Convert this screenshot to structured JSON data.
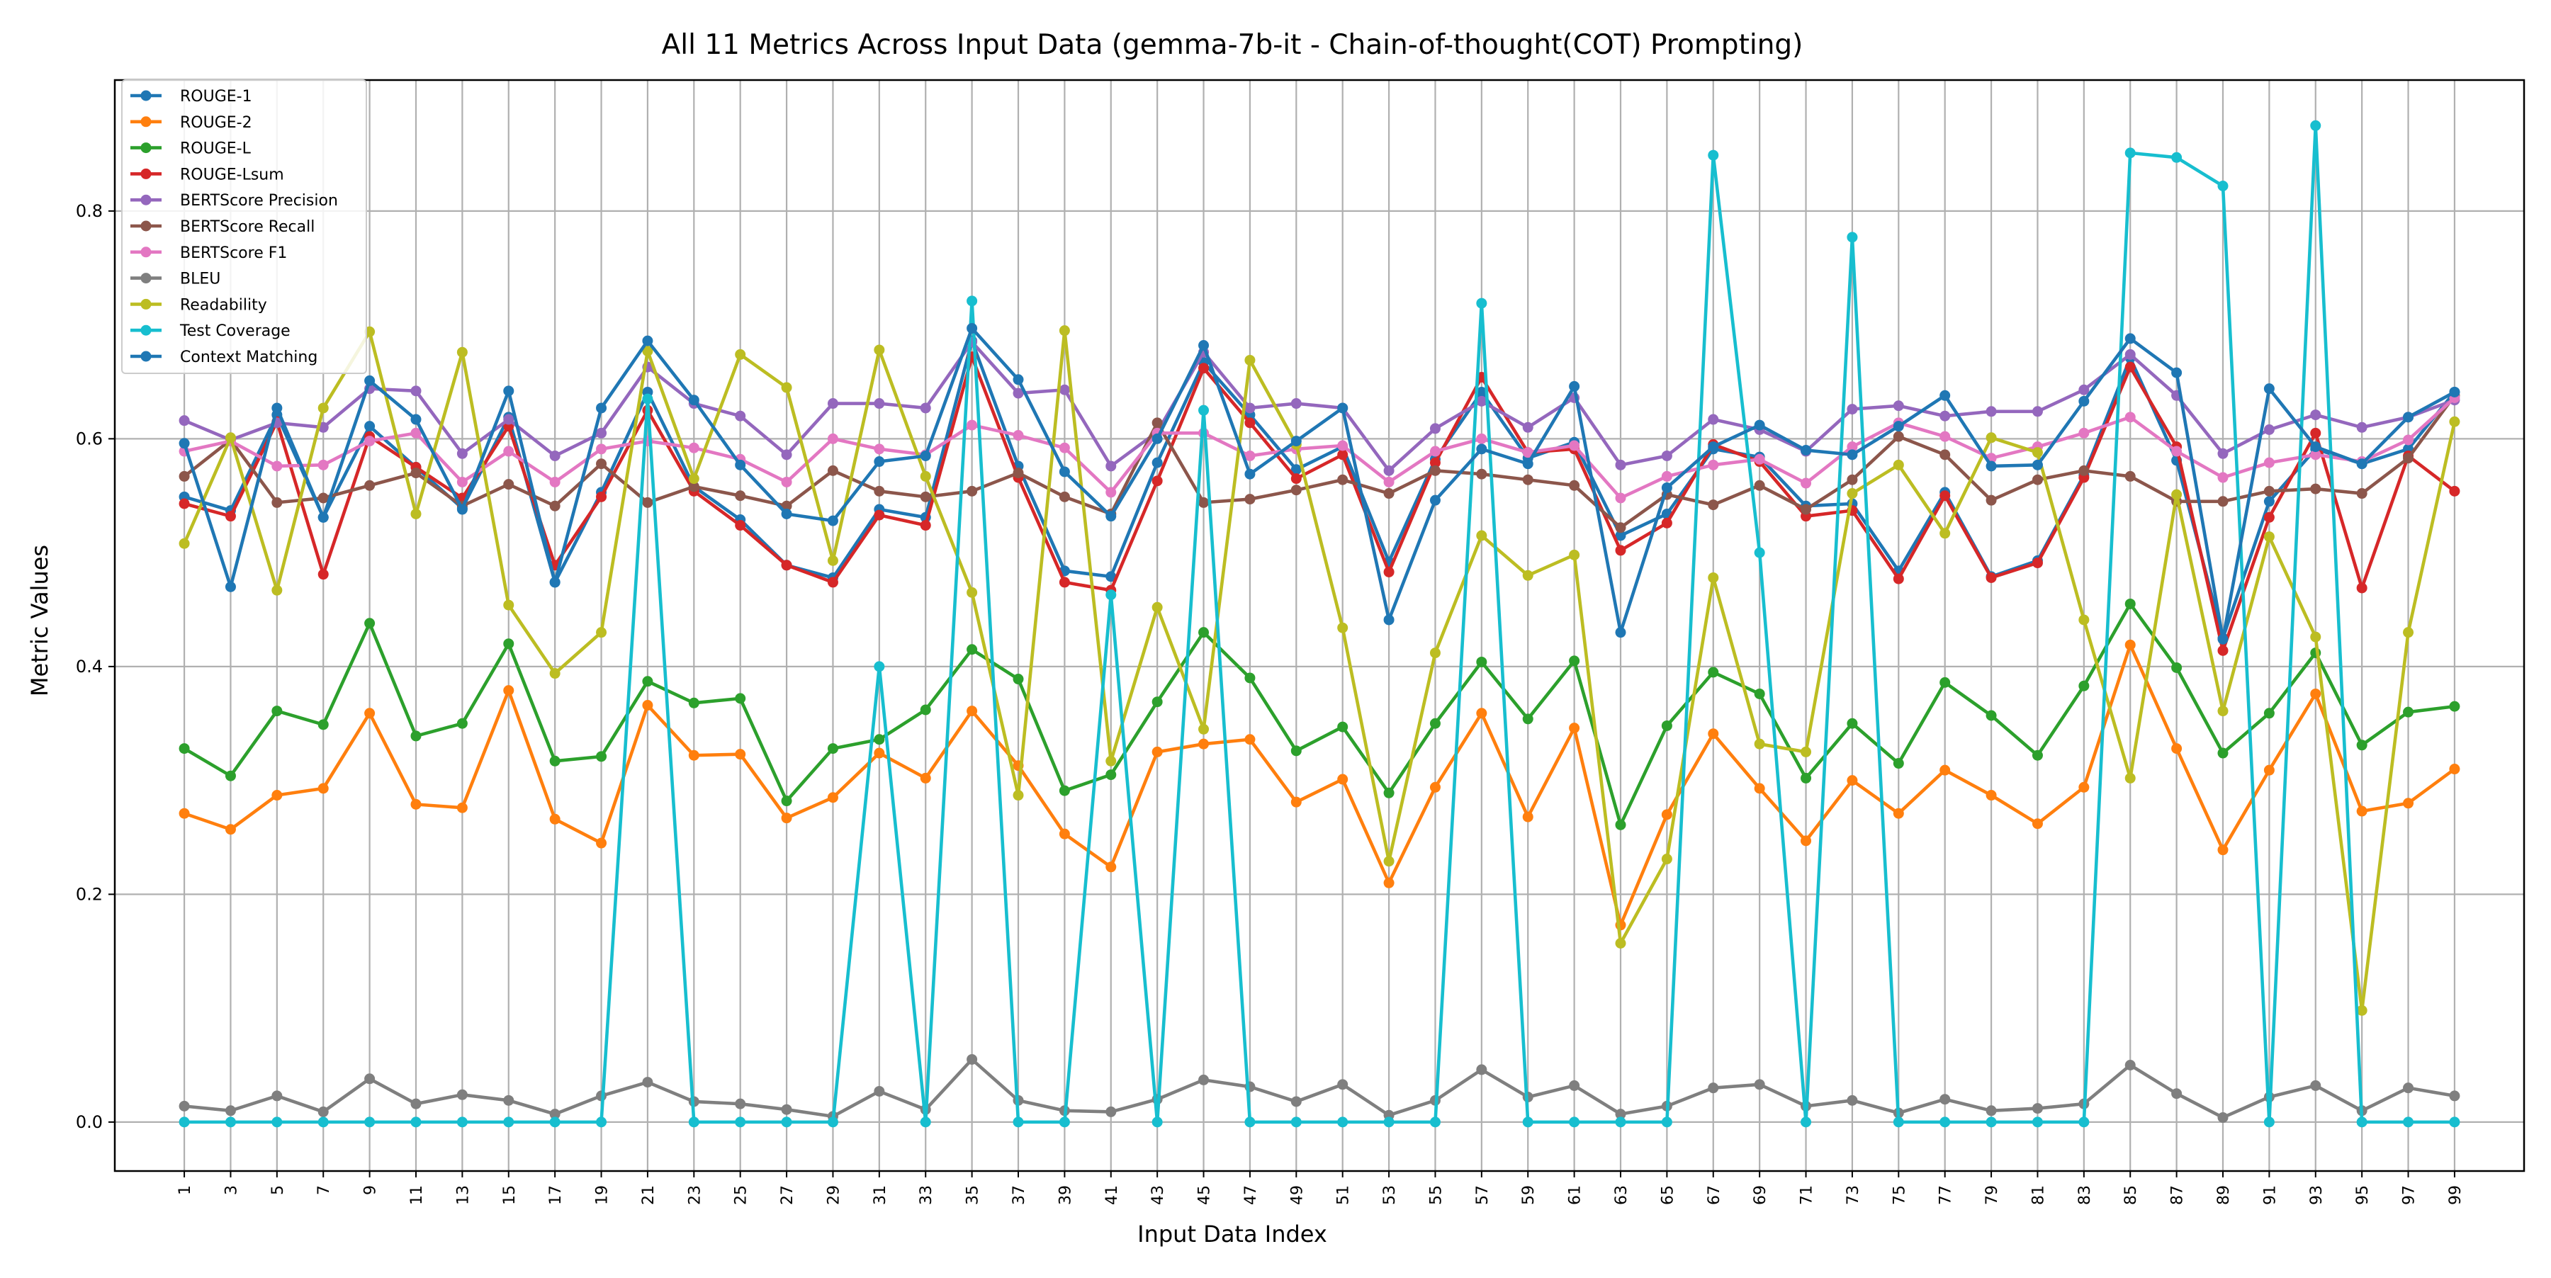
{
  "chart_data": {
    "type": "line",
    "title": "All 11 Metrics Across Input Data (gemma-7b-it - Chain-of-thought(COT) Prompting)",
    "xlabel": "Input Data Index",
    "ylabel": "Metric Values",
    "x": [
      1,
      3,
      5,
      7,
      9,
      11,
      13,
      15,
      17,
      19,
      21,
      23,
      25,
      27,
      29,
      31,
      33,
      35,
      37,
      39,
      41,
      43,
      45,
      47,
      49,
      51,
      53,
      55,
      57,
      59,
      61,
      63,
      65,
      67,
      69,
      71,
      73,
      75,
      77,
      79,
      81,
      83,
      85,
      87,
      89,
      91,
      93,
      95,
      97,
      99
    ],
    "xticks": [
      "1",
      "3",
      "5",
      "7",
      "9",
      "11",
      "13",
      "15",
      "17",
      "19",
      "21",
      "23",
      "25",
      "27",
      "29",
      "31",
      "33",
      "35",
      "37",
      "39",
      "41",
      "43",
      "45",
      "47",
      "49",
      "51",
      "53",
      "55",
      "57",
      "59",
      "61",
      "63",
      "65",
      "67",
      "69",
      "71",
      "73",
      "75",
      "77",
      "79",
      "81",
      "83",
      "85",
      "87",
      "89",
      "91",
      "93",
      "95",
      "97",
      "99"
    ],
    "yticks": [
      "0.0",
      "0.2",
      "0.4",
      "0.6",
      "0.8"
    ],
    "ytick_values": [
      0.0,
      0.2,
      0.4,
      0.6,
      0.8
    ],
    "ylim": [
      -0.043,
      0.915
    ],
    "xlim": [
      -2.0,
      102.0
    ],
    "grid": true,
    "legend_position": "upper-left",
    "series": [
      {
        "name": "ROUGE-1",
        "color": "#1f77b4",
        "values": [
          0.549,
          0.537,
          0.621,
          0.531,
          0.611,
          0.575,
          0.539,
          0.619,
          0.474,
          0.553,
          0.641,
          0.558,
          0.529,
          0.489,
          0.478,
          0.538,
          0.531,
          0.686,
          0.576,
          0.484,
          0.479,
          0.579,
          0.667,
          0.621,
          0.573,
          0.593,
          0.492,
          0.582,
          0.641,
          0.583,
          0.597,
          0.515,
          0.534,
          0.591,
          0.584,
          0.541,
          0.543,
          0.484,
          0.553,
          0.479,
          0.493,
          0.568,
          0.671,
          0.581,
          0.425,
          0.545,
          0.591,
          0.578,
          0.591,
          0.641
        ]
      },
      {
        "name": "ROUGE-2",
        "color": "#ff7f0e",
        "values": [
          0.271,
          0.257,
          0.287,
          0.293,
          0.359,
          0.279,
          0.276,
          0.379,
          0.266,
          0.245,
          0.366,
          0.322,
          0.323,
          0.267,
          0.285,
          0.324,
          0.302,
          0.361,
          0.313,
          0.253,
          0.224,
          0.325,
          0.332,
          0.336,
          0.281,
          0.301,
          0.21,
          0.294,
          0.359,
          0.268,
          0.346,
          0.173,
          0.27,
          0.341,
          0.293,
          0.247,
          0.3,
          0.271,
          0.309,
          0.287,
          0.262,
          0.294,
          0.419,
          0.328,
          0.239,
          0.309,
          0.376,
          0.273,
          0.28,
          0.31
        ]
      },
      {
        "name": "ROUGE-L",
        "color": "#2ca02c",
        "values": [
          0.328,
          0.304,
          0.361,
          0.349,
          0.438,
          0.339,
          0.35,
          0.42,
          0.317,
          0.321,
          0.387,
          0.368,
          0.372,
          0.282,
          0.328,
          0.336,
          0.362,
          0.415,
          0.389,
          0.291,
          0.305,
          0.369,
          0.43,
          0.39,
          0.326,
          0.347,
          0.289,
          0.35,
          0.404,
          0.354,
          0.405,
          0.261,
          0.348,
          0.395,
          0.376,
          0.302,
          0.35,
          0.315,
          0.386,
          0.357,
          0.322,
          0.383,
          0.455,
          0.399,
          0.324,
          0.359,
          0.412,
          0.331,
          0.36,
          0.365
        ]
      },
      {
        "name": "ROUGE-Lsum",
        "color": "#d62728",
        "values": [
          0.543,
          0.532,
          0.615,
          0.481,
          0.602,
          0.575,
          0.548,
          0.611,
          0.489,
          0.549,
          0.625,
          0.554,
          0.524,
          0.489,
          0.474,
          0.533,
          0.524,
          0.672,
          0.566,
          0.474,
          0.467,
          0.563,
          0.662,
          0.614,
          0.565,
          0.586,
          0.483,
          0.579,
          0.654,
          0.588,
          0.591,
          0.502,
          0.526,
          0.595,
          0.58,
          0.532,
          0.537,
          0.477,
          0.55,
          0.478,
          0.491,
          0.566,
          0.663,
          0.593,
          0.414,
          0.531,
          0.605,
          0.469,
          0.585,
          0.554
        ]
      },
      {
        "name": "BERTScore Precision",
        "color": "#9467bd",
        "values": [
          0.616,
          0.599,
          0.614,
          0.61,
          0.644,
          0.642,
          0.587,
          0.617,
          0.585,
          0.605,
          0.663,
          0.631,
          0.62,
          0.586,
          0.631,
          0.631,
          0.627,
          0.685,
          0.64,
          0.643,
          0.576,
          0.606,
          0.676,
          0.627,
          0.631,
          0.627,
          0.572,
          0.609,
          0.633,
          0.61,
          0.636,
          0.577,
          0.585,
          0.617,
          0.608,
          0.589,
          0.626,
          0.629,
          0.62,
          0.624,
          0.624,
          0.643,
          0.674,
          0.638,
          0.587,
          0.608,
          0.621,
          0.61,
          0.619,
          0.634
        ]
      },
      {
        "name": "BERTScore Recall",
        "color": "#8c564b",
        "values": [
          0.567,
          0.599,
          0.544,
          0.548,
          0.559,
          0.57,
          0.541,
          0.56,
          0.541,
          0.578,
          0.544,
          0.558,
          0.55,
          0.541,
          0.572,
          0.554,
          0.549,
          0.554,
          0.57,
          0.549,
          0.534,
          0.614,
          0.544,
          0.547,
          0.555,
          0.564,
          0.552,
          0.572,
          0.569,
          0.564,
          0.559,
          0.522,
          0.551,
          0.542,
          0.559,
          0.538,
          0.564,
          0.602,
          0.586,
          0.546,
          0.564,
          0.572,
          0.567,
          0.545,
          0.545,
          0.554,
          0.556,
          0.552,
          0.583,
          0.638
        ]
      },
      {
        "name": "BERTScore F1",
        "color": "#e377c2",
        "values": [
          0.589,
          0.598,
          0.576,
          0.577,
          0.598,
          0.605,
          0.562,
          0.589,
          0.562,
          0.591,
          0.598,
          0.592,
          0.582,
          0.562,
          0.6,
          0.591,
          0.586,
          0.612,
          0.603,
          0.592,
          0.553,
          0.605,
          0.605,
          0.585,
          0.591,
          0.594,
          0.562,
          0.589,
          0.6,
          0.588,
          0.594,
          0.548,
          0.567,
          0.577,
          0.582,
          0.561,
          0.593,
          0.614,
          0.602,
          0.583,
          0.593,
          0.605,
          0.619,
          0.589,
          0.566,
          0.579,
          0.586,
          0.58,
          0.599,
          0.636
        ]
      },
      {
        "name": "BLEU",
        "color": "#7f7f7f",
        "values": [
          0.014,
          0.01,
          0.023,
          0.009,
          0.038,
          0.016,
          0.024,
          0.019,
          0.007,
          0.023,
          0.035,
          0.018,
          0.016,
          0.011,
          0.005,
          0.027,
          0.011,
          0.055,
          0.019,
          0.01,
          0.009,
          0.02,
          0.037,
          0.031,
          0.018,
          0.033,
          0.006,
          0.019,
          0.046,
          0.022,
          0.032,
          0.007,
          0.014,
          0.03,
          0.033,
          0.014,
          0.019,
          0.008,
          0.02,
          0.01,
          0.012,
          0.016,
          0.05,
          0.025,
          0.004,
          0.022,
          0.032,
          0.01,
          0.03,
          0.023
        ]
      },
      {
        "name": "Readability",
        "color": "#bcbd22",
        "values": [
          0.508,
          0.601,
          0.467,
          0.627,
          0.694,
          0.534,
          0.676,
          0.454,
          0.394,
          0.43,
          0.677,
          0.565,
          0.674,
          0.645,
          0.493,
          0.678,
          0.567,
          0.465,
          0.287,
          0.695,
          0.317,
          0.452,
          0.345,
          0.669,
          0.595,
          0.434,
          0.229,
          0.412,
          0.515,
          0.48,
          0.498,
          0.157,
          0.231,
          0.478,
          0.332,
          0.325,
          0.552,
          0.577,
          0.517,
          0.601,
          0.588,
          0.441,
          0.302,
          0.551,
          0.361,
          0.514,
          0.426,
          0.098,
          0.43,
          0.615
        ]
      },
      {
        "name": "Test Coverage",
        "color": "#17becf",
        "values": [
          0,
          0,
          0,
          0,
          0,
          0,
          0,
          0,
          0,
          0,
          0.635,
          0,
          0,
          0,
          0,
          0.4,
          0,
          0.721,
          0,
          0,
          0.463,
          0,
          0.625,
          0,
          0,
          0,
          0,
          0,
          0.719,
          0,
          0,
          0,
          0,
          0.849,
          0.5,
          0,
          0.777,
          0,
          0,
          0,
          0,
          0,
          0.851,
          0.847,
          0.822,
          0,
          0.875,
          0,
          0,
          0
        ]
      },
      {
        "name": "Context Matching",
        "color": "#1f77b4",
        "values": [
          0.596,
          0.47,
          0.627,
          0.531,
          0.651,
          0.617,
          0.538,
          0.642,
          0.474,
          0.627,
          0.686,
          0.634,
          0.577,
          0.534,
          0.528,
          0.58,
          0.585,
          0.697,
          0.652,
          0.571,
          0.532,
          0.6,
          0.682,
          0.569,
          0.598,
          0.627,
          0.441,
          0.546,
          0.591,
          0.578,
          0.646,
          0.43,
          0.557,
          0.593,
          0.612,
          0.59,
          0.586,
          0.611,
          0.638,
          0.576,
          0.577,
          0.633,
          0.688,
          0.658,
          0.424,
          0.644,
          0.593,
          0.578,
          0.619,
          0.641
        ]
      }
    ]
  }
}
